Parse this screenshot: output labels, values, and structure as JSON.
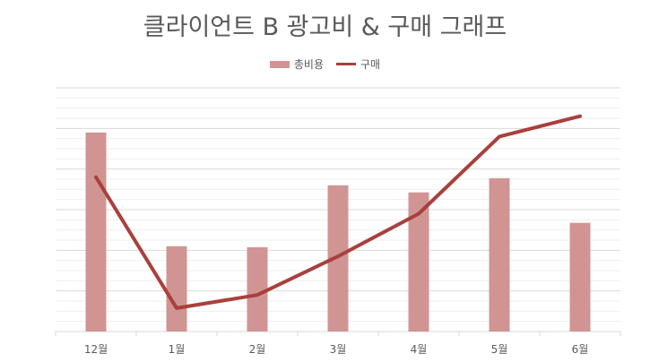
{
  "chart_data": {
    "type": "bar+line",
    "title": "클라이언트 B 광고비 & 구매 그래프",
    "categories": [
      "12월",
      "1월",
      "2월",
      "3월",
      "4월",
      "5월",
      "6월"
    ],
    "series": [
      {
        "name": "총비용",
        "type": "bar",
        "color": "#d09593",
        "values": [
          98,
          42,
          41.5,
          72,
          68.5,
          75.5,
          53.5
        ]
      },
      {
        "name": "구매",
        "type": "line",
        "color": "#a9403d",
        "values": [
          76,
          11.5,
          18,
          37,
          58,
          96,
          106
        ]
      }
    ],
    "ylim": [
      0,
      120
    ],
    "grid": true,
    "legend_position": "top"
  }
}
